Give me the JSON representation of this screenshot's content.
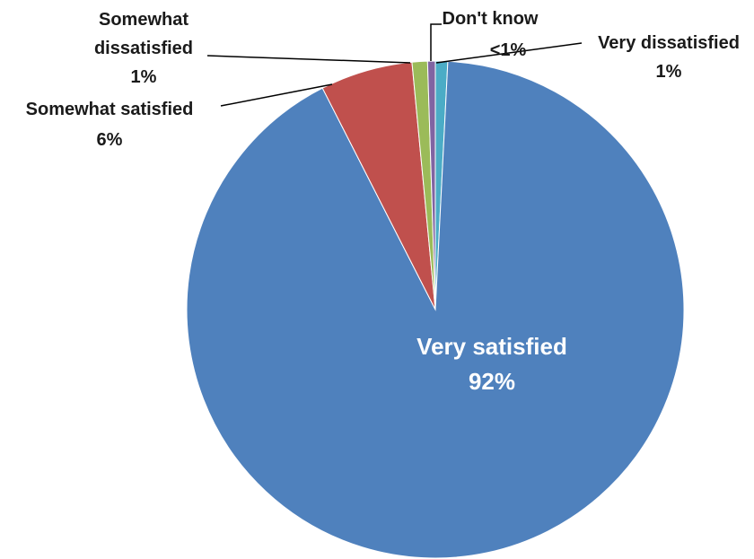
{
  "chart_data": {
    "type": "pie",
    "slices": [
      {
        "label": "Very dissatisfied",
        "value": 0.8,
        "value_label": "1%",
        "color": "#4bacc6"
      },
      {
        "label": "Very satisfied",
        "value": 91.7,
        "value_label": "92%",
        "color": "#4f81bd"
      },
      {
        "label": "Somewhat satisfied",
        "value": 6.0,
        "value_label": "6%",
        "color": "#c0504d"
      },
      {
        "label": "Somewhat dissatisfied",
        "value": 1.0,
        "value_label": "1%",
        "color": "#9bbb59"
      },
      {
        "label": "Don't know",
        "value": 0.5,
        "value_label": "<1%",
        "color": "#8064a2"
      }
    ],
    "start_angle_deg": 0,
    "direction": "clockwise",
    "legend": "none"
  },
  "labels": {
    "very_dissatisfied": {
      "name": "Very dissatisfied",
      "pct": "1%"
    },
    "very_satisfied": {
      "name": "Very satisfied",
      "pct": "92%"
    },
    "somewhat_satisfied": {
      "name": "Somewhat satisfied",
      "pct": "6%"
    },
    "somewhat_dissatisfied": {
      "name_line1": "Somewhat",
      "name_line2": "dissatisfied",
      "pct": "1%"
    },
    "dont_know": {
      "name": "Don't know",
      "pct": "<1%"
    }
  }
}
